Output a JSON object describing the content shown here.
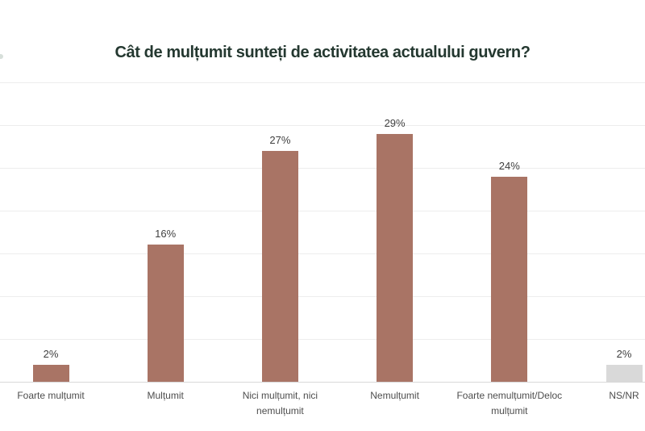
{
  "page": {
    "title": "Cât de mulțumit sunteți de activitatea actualului guvern?"
  },
  "chart_data": {
    "type": "bar",
    "title": "Cât de mulțumit sunteți de activitatea actualului guvern?",
    "categories": [
      "Foarte mulțumit",
      "Mulțumit",
      "Nici mulțumit, nici nemulțumit",
      "Nemulțumit",
      "Foarte nemulțumit/Deloc mulțumit",
      "NS/NR"
    ],
    "values": [
      2,
      16,
      27,
      29,
      24,
      2
    ],
    "value_labels": [
      "2%",
      "16%",
      "27%",
      "29%",
      "24%",
      "2%"
    ],
    "bar_colors": [
      "#A97465",
      "#A97465",
      "#A97465",
      "#A97465",
      "#A97465",
      "#D9D9D9"
    ],
    "xlabel": "",
    "ylabel": "",
    "ylim": [
      0,
      35
    ],
    "grid_step": 5,
    "grid": true,
    "legend": false,
    "colors": {
      "accent_bar": "#A97465",
      "nsnr_bar": "#D9D9D9",
      "title": "#243830",
      "value_label": "#3F3F3F",
      "category_label": "#4D4D4D",
      "gridline": "#EDEDED",
      "baseline": "#D8D8D8",
      "background": "#FFFFFF"
    }
  }
}
